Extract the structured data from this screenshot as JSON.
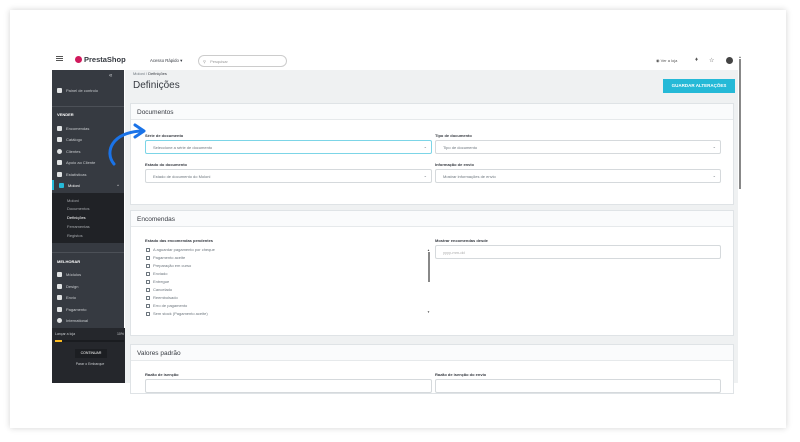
{
  "header": {
    "logo": "PrestaShop",
    "quick_access": "Acesso Rápido ▾",
    "search_placeholder": "Pesquisar",
    "view_store": "Ver a loja"
  },
  "sidebar": {
    "collapse": "«",
    "dashboard": "Painel de controlo",
    "sections": [
      {
        "title": "VENDER",
        "items": [
          "Encomendas",
          "Catálogo",
          "Clientes",
          "Apoio ao Cliente",
          "Estatísticas",
          "Moloni"
        ]
      },
      {
        "title": "MELHORAR",
        "items": [
          "Módulos",
          "Design",
          "Envio",
          "Pagamento",
          "International"
        ]
      }
    ],
    "moloni_sub": [
      "Moloni",
      "Documentos",
      "Definições",
      "Ferramentas",
      "Registos"
    ],
    "onboarding": {
      "label": "Lançar a loja",
      "percent_text": "10%",
      "progress": 0.1,
      "continue": "CONTINUAR",
      "stop": "Parar o Embarque"
    }
  },
  "main": {
    "breadcrumb": [
      "Moloni",
      "Definições"
    ],
    "title": "Definições",
    "save": "GUARDAR ALTERAÇÕES",
    "documents": {
      "title": "Documentos",
      "series_label": "Série de documento",
      "series_value": "Seleccione a série de documento",
      "type_label": "Tipo de documento",
      "type_value": "Tipo de documento",
      "status_label": "Estado do documento",
      "status_value": "Estado de documento do Moloni",
      "shipping_label": "Informação de envio",
      "shipping_value": "Mostrar informações de envio"
    },
    "orders": {
      "title": "Encomendas",
      "pending_label": "Estado das encomendas pendentes",
      "statuses": [
        "A aguardar pagamento por cheque",
        "Pagamento aceite",
        "Preparação em curso",
        "Enviado",
        "Entregue",
        "Cancelado",
        "Reembolsado",
        "Erro de pagamento",
        "Sem stock (Pagamento aceite)"
      ],
      "since_label": "Mostrar encomendas desde",
      "since_placeholder": "yyyy-mm-dd"
    },
    "defaults": {
      "title": "Valores padrão",
      "exemption_label": "Razão de isenção",
      "shipping_exemption_label": "Razão de isenção do envio"
    }
  },
  "colors": {
    "accent": "#25b9d7",
    "sidebar": "#363a41",
    "arrow": "#1a73e8",
    "progress": "#fbbb22"
  }
}
